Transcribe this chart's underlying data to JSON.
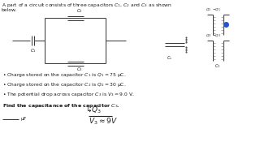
{
  "bg_color": "#ffffff",
  "title_text": "A part of a circuit consists of three capacitors $C_1$, $C_2$ and $C_3$ as shown\nbelow.",
  "bullet1": "Charge stored on the capacitor $C_1$ is $Q_1 = 75$ μC.",
  "bullet2": "Charge stored on the capacitor $C_2$ is $Q_2 = 30$ μC.",
  "bullet3": "The potential drop across capacitor $C_3$ is $V_3 = 9.0$ V.",
  "find_text": "Find the capacitance of the capacitor $C_3$.",
  "text_color": "#1a1a1a",
  "line_color": "#333333",
  "dot_color": "#2255cc",
  "right_label_color": "#555555"
}
